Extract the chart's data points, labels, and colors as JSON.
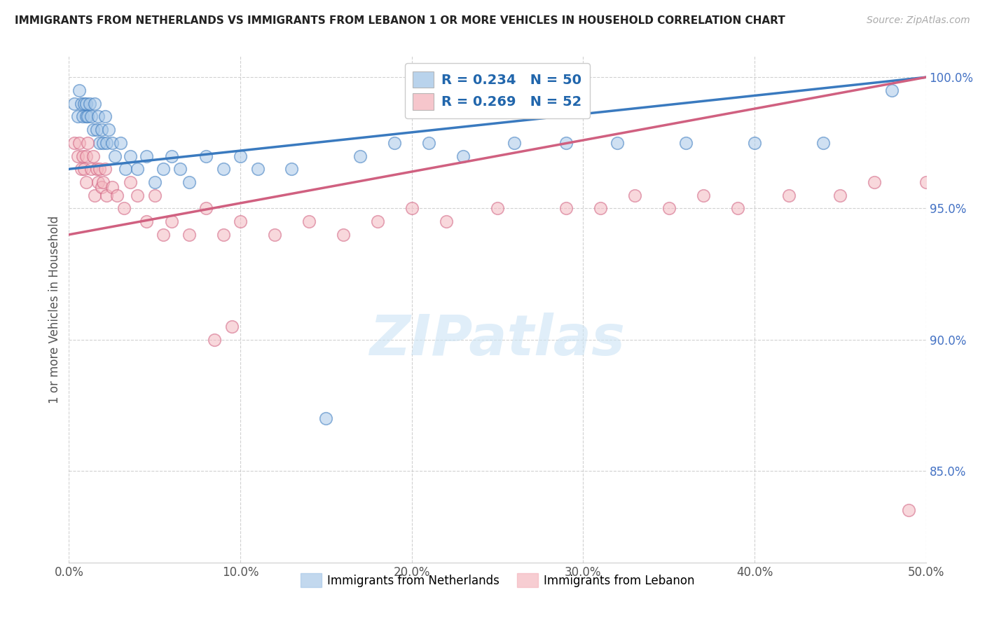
{
  "title": "IMMIGRANTS FROM NETHERLANDS VS IMMIGRANTS FROM LEBANON 1 OR MORE VEHICLES IN HOUSEHOLD CORRELATION CHART",
  "source": "Source: ZipAtlas.com",
  "ylabel": "1 or more Vehicles in Household",
  "xlim": [
    0.0,
    0.5
  ],
  "ylim": [
    0.815,
    1.008
  ],
  "ytick_labels": [
    "85.0%",
    "90.0%",
    "95.0%",
    "100.0%"
  ],
  "ytick_values": [
    0.85,
    0.9,
    0.95,
    1.0
  ],
  "xtick_labels": [
    "0.0%",
    "10.0%",
    "20.0%",
    "30.0%",
    "40.0%",
    "50.0%"
  ],
  "xtick_values": [
    0.0,
    0.1,
    0.2,
    0.3,
    0.4,
    0.5
  ],
  "legend_labels": [
    "Immigrants from Netherlands",
    "Immigrants from Lebanon"
  ],
  "legend_r_values": [
    "R = 0.234",
    "R = 0.269"
  ],
  "legend_n_values": [
    "N = 50",
    "N = 52"
  ],
  "blue_color": "#a8c8e8",
  "pink_color": "#f4b8c0",
  "blue_line_color": "#3a7abf",
  "pink_line_color": "#d06080",
  "watermark_text": "ZIPatlas",
  "netherlands_x": [
    0.003,
    0.005,
    0.006,
    0.007,
    0.008,
    0.009,
    0.01,
    0.01,
    0.011,
    0.012,
    0.013,
    0.014,
    0.015,
    0.016,
    0.017,
    0.018,
    0.019,
    0.02,
    0.021,
    0.022,
    0.023,
    0.025,
    0.027,
    0.03,
    0.033,
    0.036,
    0.04,
    0.045,
    0.05,
    0.055,
    0.06,
    0.065,
    0.07,
    0.08,
    0.09,
    0.1,
    0.11,
    0.13,
    0.15,
    0.17,
    0.19,
    0.21,
    0.23,
    0.26,
    0.29,
    0.32,
    0.36,
    0.4,
    0.44,
    0.48
  ],
  "netherlands_y": [
    0.99,
    0.985,
    0.995,
    0.99,
    0.985,
    0.99,
    0.985,
    0.99,
    0.985,
    0.99,
    0.985,
    0.98,
    0.99,
    0.98,
    0.985,
    0.975,
    0.98,
    0.975,
    0.985,
    0.975,
    0.98,
    0.975,
    0.97,
    0.975,
    0.965,
    0.97,
    0.965,
    0.97,
    0.96,
    0.965,
    0.97,
    0.965,
    0.96,
    0.97,
    0.965,
    0.97,
    0.965,
    0.965,
    0.87,
    0.97,
    0.975,
    0.975,
    0.97,
    0.975,
    0.975,
    0.975,
    0.975,
    0.975,
    0.975,
    0.995
  ],
  "lebanon_x": [
    0.003,
    0.005,
    0.006,
    0.007,
    0.008,
    0.009,
    0.01,
    0.01,
    0.011,
    0.013,
    0.014,
    0.015,
    0.016,
    0.017,
    0.018,
    0.019,
    0.02,
    0.021,
    0.022,
    0.025,
    0.028,
    0.032,
    0.036,
    0.04,
    0.045,
    0.05,
    0.055,
    0.06,
    0.07,
    0.08,
    0.09,
    0.1,
    0.12,
    0.14,
    0.16,
    0.18,
    0.2,
    0.22,
    0.25,
    0.29,
    0.31,
    0.33,
    0.35,
    0.37,
    0.39,
    0.42,
    0.45,
    0.47,
    0.49,
    0.5,
    0.085,
    0.095
  ],
  "lebanon_y": [
    0.975,
    0.97,
    0.975,
    0.965,
    0.97,
    0.965,
    0.97,
    0.96,
    0.975,
    0.965,
    0.97,
    0.955,
    0.965,
    0.96,
    0.965,
    0.958,
    0.96,
    0.965,
    0.955,
    0.958,
    0.955,
    0.95,
    0.96,
    0.955,
    0.945,
    0.955,
    0.94,
    0.945,
    0.94,
    0.95,
    0.94,
    0.945,
    0.94,
    0.945,
    0.94,
    0.945,
    0.95,
    0.945,
    0.95,
    0.95,
    0.95,
    0.955,
    0.95,
    0.955,
    0.95,
    0.955,
    0.955,
    0.96,
    0.835,
    0.96,
    0.9,
    0.905
  ]
}
